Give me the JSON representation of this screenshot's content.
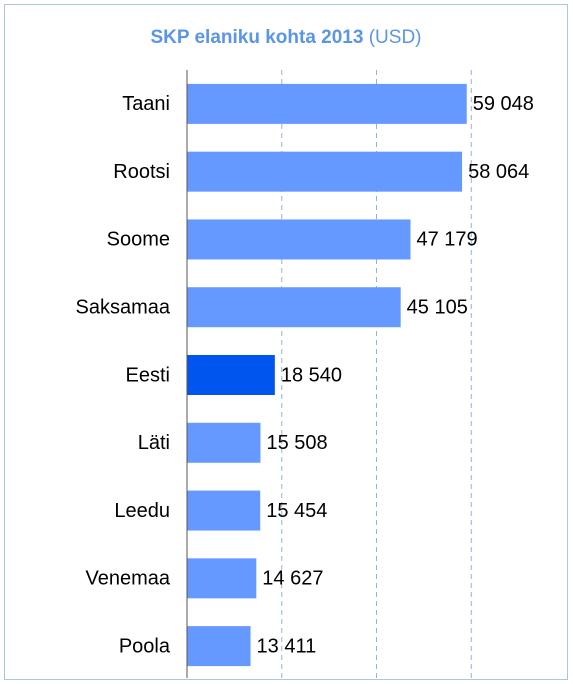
{
  "chart_data": {
    "type": "bar",
    "orientation": "horizontal",
    "title": "SKP elaniku kohta 2013",
    "units": "(USD)",
    "categories": [
      "Taani",
      "Rootsi",
      "Soome",
      "Saksamaa",
      "Eesti",
      "Läti",
      "Leedu",
      "Venemaa",
      "Poola"
    ],
    "values": [
      59048,
      58064,
      47179,
      45105,
      18540,
      15508,
      15454,
      14627,
      13411
    ],
    "value_labels": [
      "59 048",
      "58 064",
      "47 179",
      "45 105",
      "18 540",
      "15 508",
      "15 454",
      "14 627",
      "13 411"
    ],
    "colors": [
      "#6699ff",
      "#6699ff",
      "#6699ff",
      "#6699ff",
      "#0055ee",
      "#6699ff",
      "#6699ff",
      "#6699ff",
      "#6699ff"
    ],
    "xlim": [
      0,
      80000
    ],
    "xticks": [
      20000,
      40000,
      60000
    ],
    "grid": true
  }
}
